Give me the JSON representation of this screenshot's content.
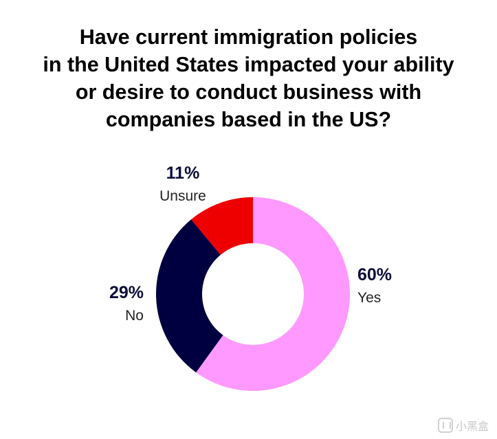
{
  "title_lines": [
    "Have current immigration policies",
    "in the United States impacted your ability",
    "or desire to conduct business with",
    "companies based in the US?"
  ],
  "chart_data": {
    "type": "pie",
    "donut": true,
    "title": "Have current immigration policies in the United States impacted your ability or desire to conduct business with companies based in the US?",
    "categories": [
      "Yes",
      "No",
      "Unsure"
    ],
    "values": [
      60,
      29,
      11
    ],
    "value_labels": [
      "60%",
      "29%",
      "11%"
    ],
    "colors": [
      "#ff99ff",
      "#000040",
      "#ee0000"
    ],
    "label_color": "#0d0d3a",
    "text_color": "#222222"
  },
  "watermark": {
    "text": "小黑盒",
    "icon": "xiaoheihe-logo-icon"
  }
}
